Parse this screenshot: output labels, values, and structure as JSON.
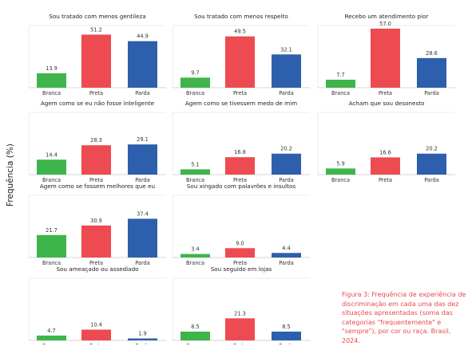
{
  "ylabel": "Frequência (%)",
  "caption": "Figura 3: Frequência de experiência de discriminação em cada uma das dez situações apresentadas (soma das categorias \"frequentemente\" e \"sempre\"), por cor ou raça. Brasil, 2024.",
  "colors": {
    "Branca": "#3db54a",
    "Preta": "#ed4a52",
    "Parda": "#2d5fad"
  },
  "chart_data": [
    {
      "type": "bar",
      "title": "Sou tratado com menos gentileza",
      "categories": [
        "Branca",
        "Preta",
        "Parda"
      ],
      "values": [
        13.9,
        51.2,
        44.9
      ],
      "labels": [
        "13.9",
        "51.2",
        "44.9"
      ],
      "ylim": [
        0,
        60
      ]
    },
    {
      "type": "bar",
      "title": "Sou tratado com menos respeito",
      "categories": [
        "Branca",
        "Preta",
        "Parda"
      ],
      "values": [
        9.7,
        49.5,
        32.1
      ],
      "labels": [
        "9.7",
        "49.5",
        "32.1"
      ],
      "ylim": [
        0,
        60
      ]
    },
    {
      "type": "bar",
      "title": "Recebo um atendimento pior",
      "categories": [
        "Branca",
        "Preta",
        "Parda"
      ],
      "values": [
        7.7,
        57.0,
        28.6
      ],
      "labels": [
        "7.7",
        "57.0",
        "28.6"
      ],
      "ylim": [
        0,
        60
      ]
    },
    {
      "type": "bar",
      "title": "Agem como se eu não fosse inteligente",
      "categories": [
        "Branca",
        "Preta",
        "Parda"
      ],
      "values": [
        14.4,
        28.3,
        29.1
      ],
      "labels": [
        "14.4",
        "28.3",
        "29.1"
      ],
      "ylim": [
        0,
        60
      ]
    },
    {
      "type": "bar",
      "title": "Agem como se tivessem medo de mim",
      "categories": [
        "Branca",
        "Preta",
        "Parda"
      ],
      "values": [
        5.1,
        16.8,
        20.2
      ],
      "labels": [
        "5.1",
        "16.8",
        "20.2"
      ],
      "ylim": [
        0,
        60
      ]
    },
    {
      "type": "bar",
      "title": "Acham que sou desonesto",
      "categories": [
        "Branca",
        "Preta",
        "Parda"
      ],
      "values": [
        5.9,
        16.6,
        20.2
      ],
      "labels": [
        "5.9",
        "16.6",
        "20.2"
      ],
      "ylim": [
        0,
        60
      ]
    },
    {
      "type": "bar",
      "title": "Agem como se fossem melhores que eu",
      "categories": [
        "Branca",
        "Preta",
        "Parda"
      ],
      "values": [
        21.7,
        30.9,
        37.4
      ],
      "labels": [
        "21.7",
        "30.9",
        "37.4"
      ],
      "ylim": [
        0,
        60
      ]
    },
    {
      "type": "bar",
      "title": "Sou xingado com palavrões e insultos",
      "categories": [
        "Branca",
        "Preta",
        "Parda"
      ],
      "values": [
        3.4,
        9.0,
        4.4
      ],
      "labels": [
        "3.4",
        "9.0",
        "4.4"
      ],
      "ylim": [
        0,
        60
      ]
    },
    {
      "type": "bar",
      "title": "Sou ameaçado ou assediado",
      "categories": [
        "Branca",
        "Preta",
        "Parda"
      ],
      "values": [
        4.7,
        10.4,
        1.9
      ],
      "labels": [
        "4.7",
        "10.4",
        "1.9"
      ],
      "ylim": [
        0,
        60
      ]
    },
    {
      "type": "bar",
      "title": "Sou seguido em lojas",
      "categories": [
        "Branca",
        "Preta",
        "Parda"
      ],
      "values": [
        8.5,
        21.3,
        8.5
      ],
      "labels": [
        "8.5",
        "21.3",
        "8.5"
      ],
      "ylim": [
        0,
        60
      ]
    }
  ]
}
